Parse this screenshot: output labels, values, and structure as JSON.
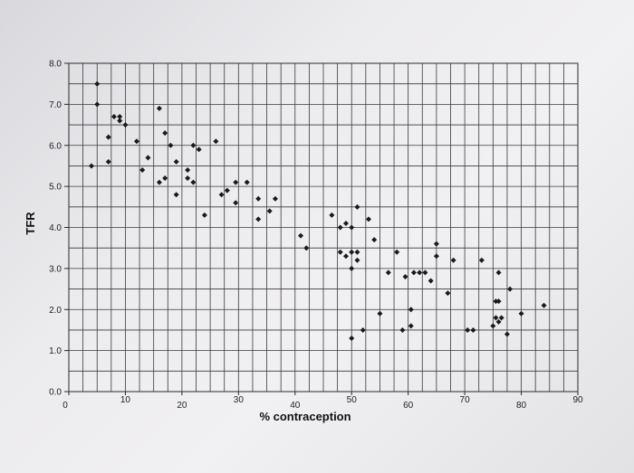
{
  "chart_data": {
    "type": "scatter",
    "title": "",
    "xlabel": "% contraception",
    "ylabel": "TFR",
    "xlim": [
      0,
      90
    ],
    "ylim": [
      0,
      8
    ],
    "grid": true,
    "x_ticks": [
      "0",
      "10",
      "20",
      "30",
      "40",
      "50",
      "60",
      "70",
      "80",
      "90"
    ],
    "y_ticks": [
      "0.0",
      "1.0",
      "2.0",
      "3.0",
      "4.0",
      "5.0",
      "6.0",
      "7.0",
      "8.0"
    ],
    "points": [
      {
        "x": 4,
        "y": 5.5
      },
      {
        "x": 5,
        "y": 7.5
      },
      {
        "x": 5,
        "y": 7.0
      },
      {
        "x": 7,
        "y": 6.2
      },
      {
        "x": 7,
        "y": 5.6
      },
      {
        "x": 8,
        "y": 6.7
      },
      {
        "x": 9,
        "y": 6.7
      },
      {
        "x": 9,
        "y": 6.6
      },
      {
        "x": 10,
        "y": 6.5
      },
      {
        "x": 12,
        "y": 6.1
      },
      {
        "x": 13,
        "y": 5.4
      },
      {
        "x": 14,
        "y": 5.7
      },
      {
        "x": 16,
        "y": 6.9
      },
      {
        "x": 16,
        "y": 5.1
      },
      {
        "x": 17,
        "y": 6.3
      },
      {
        "x": 17,
        "y": 5.2
      },
      {
        "x": 18,
        "y": 6.0
      },
      {
        "x": 19,
        "y": 5.6
      },
      {
        "x": 19,
        "y": 4.8
      },
      {
        "x": 21,
        "y": 5.4
      },
      {
        "x": 21,
        "y": 5.2
      },
      {
        "x": 22,
        "y": 6.0
      },
      {
        "x": 22,
        "y": 5.1
      },
      {
        "x": 23,
        "y": 5.9
      },
      {
        "x": 24,
        "y": 4.3
      },
      {
        "x": 26,
        "y": 6.1
      },
      {
        "x": 27,
        "y": 4.8
      },
      {
        "x": 28,
        "y": 4.9
      },
      {
        "x": 29.5,
        "y": 4.6
      },
      {
        "x": 29.5,
        "y": 5.1
      },
      {
        "x": 31.5,
        "y": 5.1
      },
      {
        "x": 33.5,
        "y": 4.7
      },
      {
        "x": 33.5,
        "y": 4.2
      },
      {
        "x": 35.5,
        "y": 4.4
      },
      {
        "x": 36.5,
        "y": 4.7
      },
      {
        "x": 41,
        "y": 3.8
      },
      {
        "x": 42,
        "y": 3.5
      },
      {
        "x": 46.5,
        "y": 4.3
      },
      {
        "x": 48,
        "y": 4.0
      },
      {
        "x": 48,
        "y": 3.4
      },
      {
        "x": 49,
        "y": 4.1
      },
      {
        "x": 49,
        "y": 3.3
      },
      {
        "x": 50,
        "y": 4.0
      },
      {
        "x": 50,
        "y": 3.4
      },
      {
        "x": 50,
        "y": 3.0
      },
      {
        "x": 50,
        "y": 1.3
      },
      {
        "x": 51,
        "y": 4.5
      },
      {
        "x": 51,
        "y": 3.4
      },
      {
        "x": 51,
        "y": 3.2
      },
      {
        "x": 52,
        "y": 1.5
      },
      {
        "x": 53,
        "y": 4.2
      },
      {
        "x": 54,
        "y": 3.7
      },
      {
        "x": 55,
        "y": 1.9
      },
      {
        "x": 56.5,
        "y": 2.9
      },
      {
        "x": 58,
        "y": 3.4
      },
      {
        "x": 59,
        "y": 1.5
      },
      {
        "x": 59.5,
        "y": 2.8
      },
      {
        "x": 60.5,
        "y": 2.0
      },
      {
        "x": 60.5,
        "y": 1.6
      },
      {
        "x": 61,
        "y": 2.9
      },
      {
        "x": 62,
        "y": 2.9
      },
      {
        "x": 63,
        "y": 2.9
      },
      {
        "x": 64,
        "y": 2.7
      },
      {
        "x": 65,
        "y": 3.6
      },
      {
        "x": 65,
        "y": 3.3
      },
      {
        "x": 67,
        "y": 2.4
      },
      {
        "x": 68,
        "y": 3.2
      },
      {
        "x": 70.5,
        "y": 1.5
      },
      {
        "x": 71.5,
        "y": 1.5
      },
      {
        "x": 73,
        "y": 3.2
      },
      {
        "x": 75,
        "y": 1.6
      },
      {
        "x": 75.5,
        "y": 2.2
      },
      {
        "x": 75.5,
        "y": 1.8
      },
      {
        "x": 76,
        "y": 2.9
      },
      {
        "x": 76,
        "y": 2.2
      },
      {
        "x": 76,
        "y": 1.7
      },
      {
        "x": 76.5,
        "y": 1.8
      },
      {
        "x": 77.5,
        "y": 1.4
      },
      {
        "x": 78,
        "y": 2.5
      },
      {
        "x": 80,
        "y": 1.9
      },
      {
        "x": 84,
        "y": 2.1
      }
    ]
  }
}
